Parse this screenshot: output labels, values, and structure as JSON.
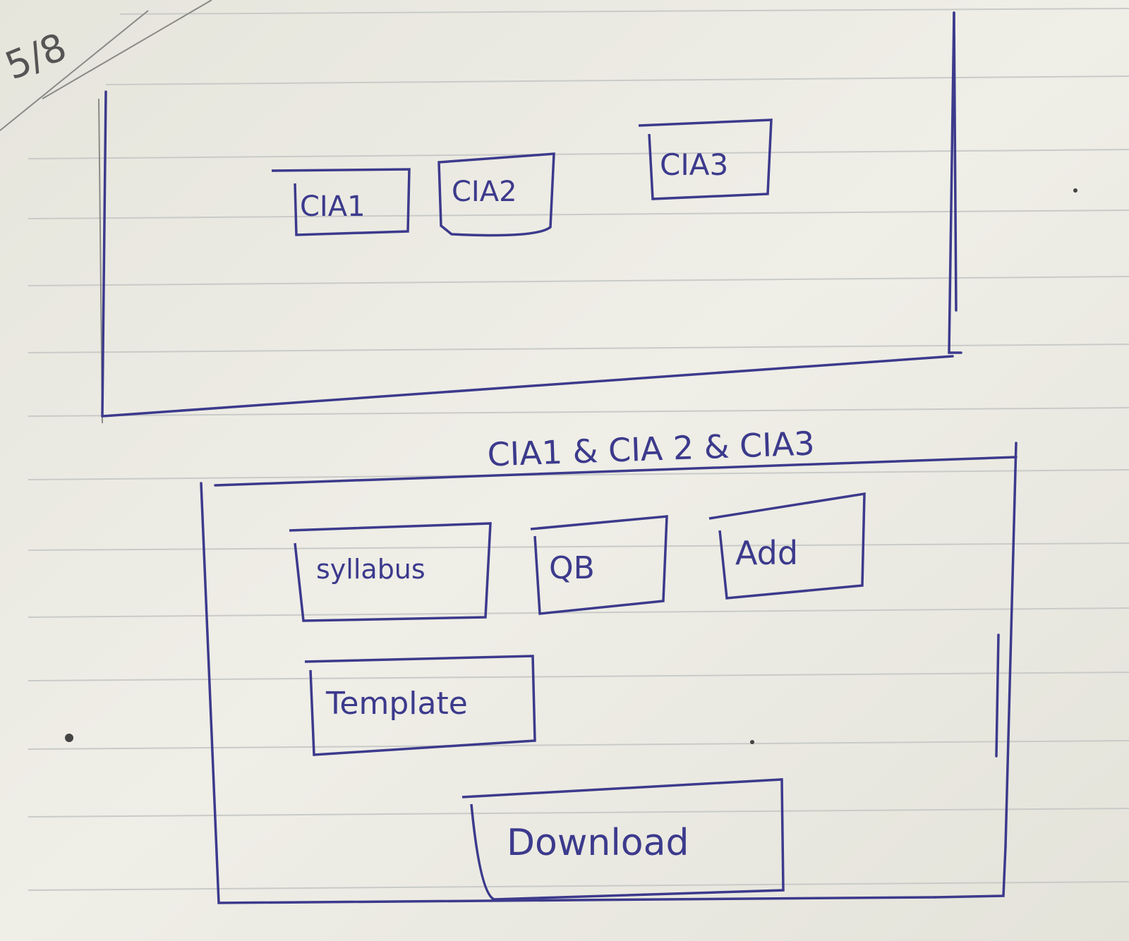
{
  "corner_note": "5/8",
  "top_panel": {
    "tabs": [
      {
        "label": "CIA1"
      },
      {
        "label": "CIA2"
      },
      {
        "label": "CIA3"
      }
    ]
  },
  "section_caption": "CIA1 & CIA 2 & CIA3",
  "bottom_panel": {
    "buttons": [
      {
        "label": "syllabus"
      },
      {
        "label": "QB"
      },
      {
        "label": "Add"
      },
      {
        "label": "Template"
      },
      {
        "label": "Download"
      }
    ]
  },
  "colors": {
    "ink": "#3c3a8c",
    "paper": "#ecebe3",
    "ruled_line": "#c9cbc8"
  }
}
